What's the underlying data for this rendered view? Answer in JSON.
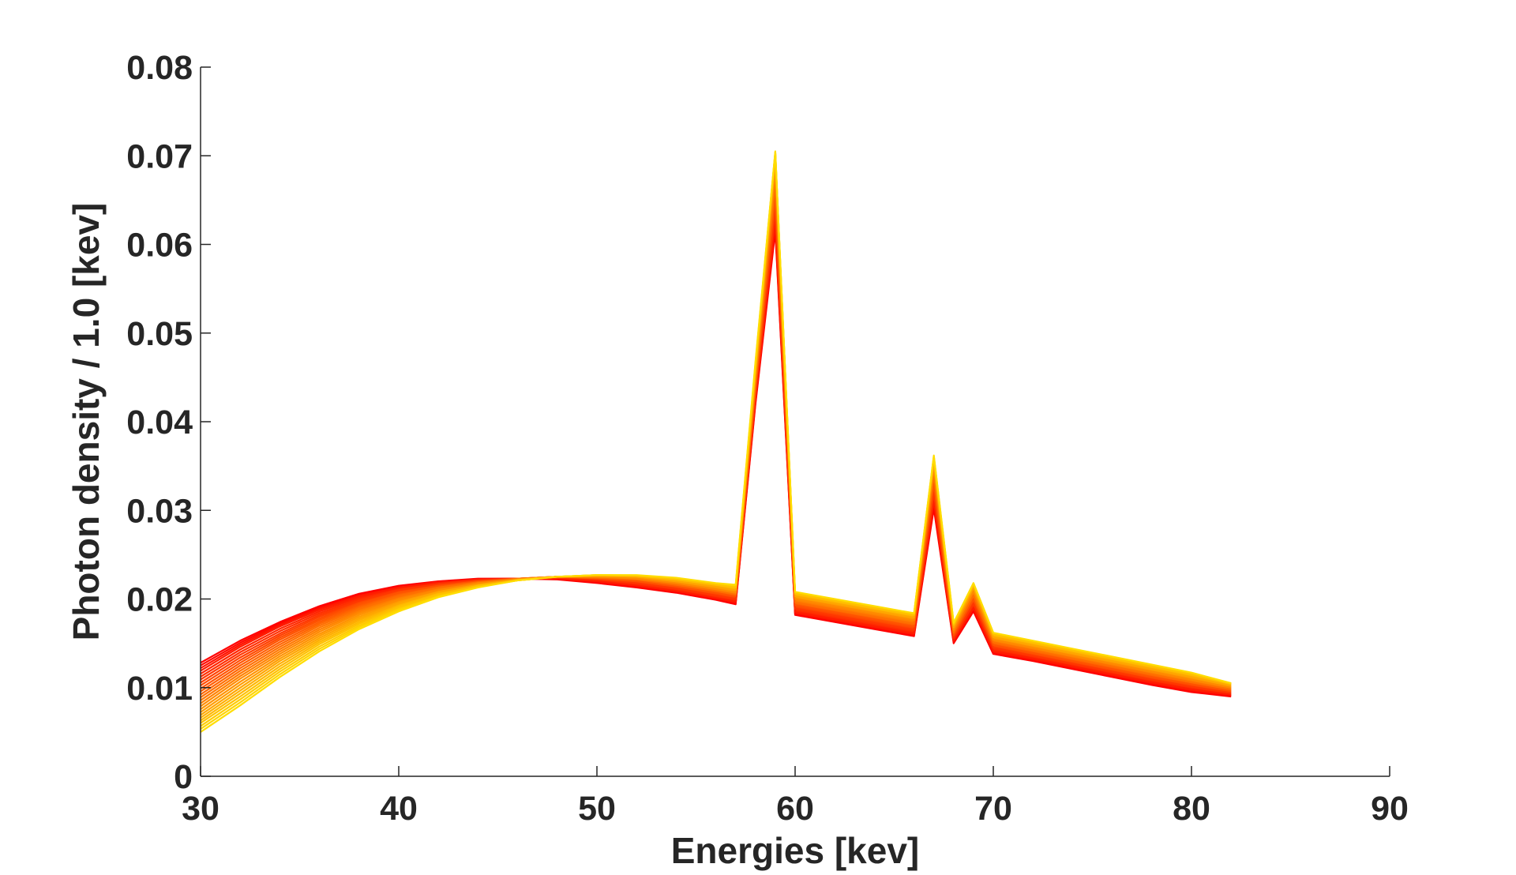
{
  "chart_data": {
    "type": "line",
    "title": "",
    "xlabel": "Energies [kev]",
    "ylabel": "Photon density / 1.0 [kev]",
    "xlim": [
      30,
      90
    ],
    "ylim": [
      0,
      0.08
    ],
    "grid": false,
    "legend": "none",
    "x_ticks": [
      "30",
      "40",
      "50",
      "60",
      "70",
      "80",
      "90"
    ],
    "y_ticks": [
      "0",
      "0.01",
      "0.02",
      "0.03",
      "0.04",
      "0.05",
      "0.06",
      "0.07",
      "0.08"
    ],
    "x": [
      30,
      32,
      34,
      36,
      38,
      40,
      42,
      44,
      46,
      48,
      50,
      52,
      54,
      56,
      57,
      58,
      59,
      60,
      62,
      64,
      66,
      67,
      68,
      69,
      70,
      72,
      74,
      76,
      78,
      80,
      82
    ],
    "color_scale": {
      "first": "#ff0000",
      "last": "#ffdd00"
    },
    "series": [
      {
        "values": [
          0.0128,
          0.0153,
          0.0174,
          0.0192,
          0.0206,
          0.0215,
          0.022,
          0.0223,
          0.0223,
          0.0222,
          0.0218,
          0.0213,
          0.0207,
          0.0199,
          0.0194,
          0.042,
          0.0615,
          0.0182,
          0.0174,
          0.0166,
          0.0158,
          0.0302,
          0.015,
          0.0186,
          0.0138,
          0.013,
          0.0121,
          0.0112,
          0.0103,
          0.0095,
          0.009
        ]
      },
      {
        "values": [
          0.0119,
          0.0146,
          0.0169,
          0.0188,
          0.0203,
          0.0213,
          0.0219,
          0.0222,
          0.0223,
          0.0223,
          0.022,
          0.0215,
          0.0209,
          0.0201,
          0.0197,
          0.0426,
          0.0625,
          0.0185,
          0.0177,
          0.0169,
          0.0161,
          0.031,
          0.0153,
          0.019,
          0.0141,
          0.0133,
          0.0124,
          0.0115,
          0.0106,
          0.0098,
          0.0092
        ]
      },
      {
        "values": [
          0.0109,
          0.0137,
          0.0161,
          0.0182,
          0.0198,
          0.021,
          0.0217,
          0.0221,
          0.0223,
          0.0224,
          0.0222,
          0.0218,
          0.0212,
          0.0204,
          0.02,
          0.0432,
          0.064,
          0.0189,
          0.0181,
          0.0173,
          0.0165,
          0.032,
          0.0156,
          0.0195,
          0.0145,
          0.0136,
          0.0127,
          0.0118,
          0.0109,
          0.0101,
          0.0094
        ]
      },
      {
        "values": [
          0.0099,
          0.0128,
          0.0154,
          0.0176,
          0.0194,
          0.0207,
          0.0215,
          0.022,
          0.0223,
          0.0225,
          0.0223,
          0.022,
          0.0214,
          0.0207,
          0.0203,
          0.0438,
          0.0655,
          0.0193,
          0.0185,
          0.0177,
          0.0169,
          0.033,
          0.0159,
          0.02,
          0.0148,
          0.0139,
          0.013,
          0.0121,
          0.0112,
          0.0104,
          0.0096
        ]
      },
      {
        "values": [
          0.0089,
          0.0119,
          0.0146,
          0.017,
          0.0189,
          0.0203,
          0.0213,
          0.0219,
          0.0223,
          0.0225,
          0.0224,
          0.0222,
          0.0216,
          0.0209,
          0.0205,
          0.0444,
          0.067,
          0.0196,
          0.0188,
          0.018,
          0.0172,
          0.034,
          0.0162,
          0.0204,
          0.0151,
          0.0142,
          0.0133,
          0.0124,
          0.0115,
          0.0106,
          0.0098
        ]
      },
      {
        "values": [
          0.0079,
          0.011,
          0.0138,
          0.0163,
          0.0184,
          0.0199,
          0.021,
          0.0218,
          0.0222,
          0.0225,
          0.0225,
          0.0223,
          0.0218,
          0.0211,
          0.0207,
          0.045,
          0.0685,
          0.02,
          0.0192,
          0.0184,
          0.0176,
          0.0348,
          0.0165,
          0.0209,
          0.0154,
          0.0145,
          0.0136,
          0.0127,
          0.0118,
          0.0109,
          0.01
        ]
      },
      {
        "values": [
          0.0069,
          0.01,
          0.013,
          0.0156,
          0.0178,
          0.0195,
          0.0208,
          0.0216,
          0.0222,
          0.0225,
          0.0226,
          0.0225,
          0.022,
          0.0214,
          0.021,
          0.0456,
          0.0695,
          0.0203,
          0.0195,
          0.0187,
          0.0179,
          0.0354,
          0.0168,
          0.0213,
          0.0157,
          0.0148,
          0.0139,
          0.013,
          0.0121,
          0.0112,
          0.0102
        ]
      },
      {
        "values": [
          0.006,
          0.009,
          0.0121,
          0.0149,
          0.0172,
          0.0191,
          0.0205,
          0.0215,
          0.0221,
          0.0225,
          0.0227,
          0.0226,
          0.0222,
          0.0216,
          0.0213,
          0.0462,
          0.0703,
          0.0206,
          0.0198,
          0.019,
          0.0182,
          0.0359,
          0.0171,
          0.0216,
          0.016,
          0.0151,
          0.0142,
          0.0133,
          0.0124,
          0.0115,
          0.0104
        ]
      },
      {
        "values": [
          0.005,
          0.008,
          0.0112,
          0.0141,
          0.0166,
          0.0186,
          0.0202,
          0.0213,
          0.0221,
          0.0225,
          0.0227,
          0.0227,
          0.0224,
          0.0218,
          0.0216,
          0.0468,
          0.0705,
          0.0208,
          0.02,
          0.0192,
          0.0184,
          0.0362,
          0.0173,
          0.0218,
          0.0162,
          0.0153,
          0.0144,
          0.0135,
          0.0126,
          0.0117,
          0.0105
        ]
      }
    ]
  }
}
